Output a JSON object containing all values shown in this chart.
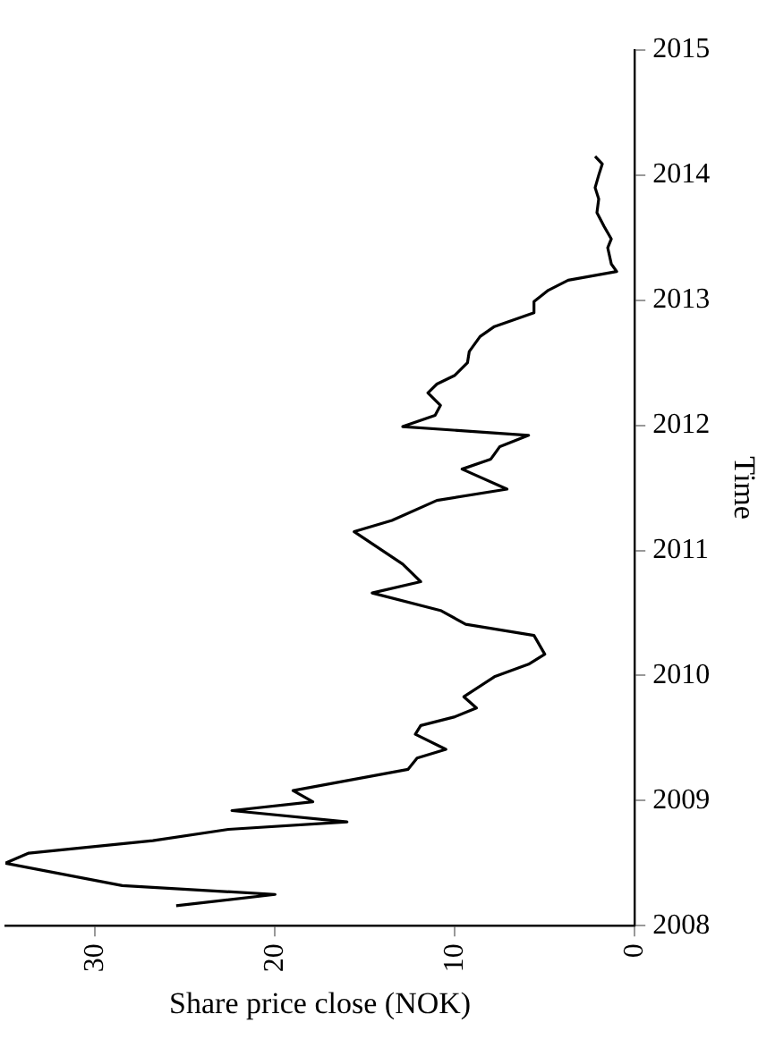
{
  "chart_data": {
    "type": "line",
    "xlabel": "Share price close (NOK)",
    "ylabel": "Time",
    "x": [
      25.5,
      20.0,
      28.5,
      35.0,
      33.7,
      26.8,
      22.6,
      16.0,
      22.4,
      17.9,
      19.0,
      12.6,
      12.1,
      10.5,
      12.2,
      11.9,
      10.0,
      8.8,
      9.5,
      7.8,
      5.9,
      5.0,
      5.6,
      9.4,
      10.8,
      14.6,
      11.9,
      12.9,
      15.6,
      13.5,
      11.0,
      7.1,
      9.6,
      8.0,
      7.5,
      5.9,
      12.9,
      11.1,
      10.8,
      11.5,
      11.0,
      10.0,
      9.3,
      9.2,
      8.6,
      7.8,
      5.6,
      5.6,
      4.8,
      3.7,
      1.0,
      1.3,
      1.5,
      1.3,
      1.7,
      2.1,
      2.0,
      2.2,
      2.0,
      1.8,
      2.2
    ],
    "series": [
      {
        "color": "#000000",
        "values": [
          2008.16,
          2008.25,
          2008.32,
          2008.5,
          2008.58,
          2008.68,
          2008.77,
          2008.83,
          2008.92,
          2008.99,
          2009.08,
          2009.25,
          2009.34,
          2009.41,
          2009.53,
          2009.6,
          2009.67,
          2009.74,
          2009.83,
          2009.99,
          2010.09,
          2010.17,
          2010.32,
          2010.41,
          2010.52,
          2010.66,
          2010.75,
          2010.89,
          2011.15,
          2011.24,
          2011.4,
          2011.49,
          2011.65,
          2011.73,
          2011.83,
          2011.92,
          2011.99,
          2012.08,
          2012.16,
          2012.26,
          2012.33,
          2012.4,
          2012.5,
          2012.59,
          2012.71,
          2012.79,
          2012.9,
          2012.99,
          2013.08,
          2013.16,
          2013.23,
          2013.29,
          2013.42,
          2013.49,
          2013.59,
          2013.7,
          2013.81,
          2013.9,
          2014.0,
          2014.09,
          2014.15
        ]
      }
    ],
    "xlim": [
      35,
      0
    ],
    "xticks": [
      30,
      20,
      10,
      0
    ],
    "ylim": [
      2008,
      2015
    ],
    "yticks": [
      2008,
      2009,
      2010,
      2011,
      2012,
      2013,
      2014,
      2015
    ],
    "grid": false,
    "legend": false,
    "marker": "none",
    "line_style": "solid"
  }
}
